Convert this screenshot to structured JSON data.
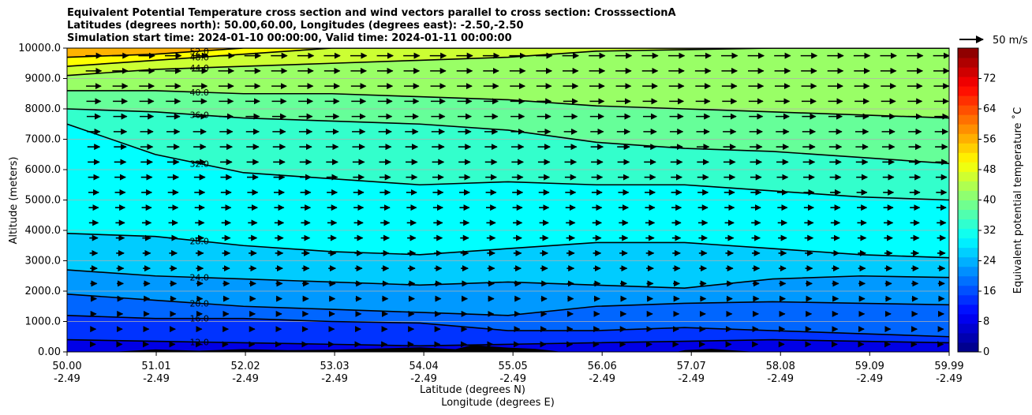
{
  "title_lines": [
    "Equivalent Potential Temperature cross section and wind vectors parallel to cross section: CrosssectionA",
    "Latitudes (degrees north): 50.00,60.00, Longitudes (degrees east): -2.50,-2.50",
    "Simulation start time: 2024-01-10 00:00:00, Valid time: 2024-01-11 00:00:00"
  ],
  "chart_data": {
    "type": "contour",
    "ylabel": "Altitude (meters)",
    "xlabel": "Latitude (degrees N)",
    "xlabel2": "Longitude (degrees E)",
    "ylim": [
      0,
      10000
    ],
    "xlim": [
      50.0,
      59.99
    ],
    "y_ticks": [
      "0.00",
      "1000.0",
      "2000.0",
      "3000.0",
      "4000.0",
      "5000.0",
      "6000.0",
      "7000.0",
      "8000.0",
      "9000.0",
      "10000.0"
    ],
    "y_tick_values": [
      0,
      1000,
      2000,
      3000,
      4000,
      5000,
      6000,
      7000,
      8000,
      9000,
      10000
    ],
    "x_ticks": [
      {
        "lat": "50.00",
        "lon": "-2.49",
        "value": 50.0
      },
      {
        "lat": "51.01",
        "lon": "-2.49",
        "value": 51.01
      },
      {
        "lat": "52.02",
        "lon": "-2.49",
        "value": 52.02
      },
      {
        "lat": "53.03",
        "lon": "-2.49",
        "value": 53.03
      },
      {
        "lat": "54.04",
        "lon": "-2.49",
        "value": 54.04
      },
      {
        "lat": "55.05",
        "lon": "-2.49",
        "value": 55.05
      },
      {
        "lat": "56.06",
        "lon": "-2.49",
        "value": 56.06
      },
      {
        "lat": "57.07",
        "lon": "-2.49",
        "value": 57.07
      },
      {
        "lat": "58.08",
        "lon": "-2.49",
        "value": 58.08
      },
      {
        "lat": "59.09",
        "lon": "-2.49",
        "value": 59.09
      },
      {
        "lat": "59.99",
        "lon": "-2.49",
        "value": 59.99
      }
    ],
    "grid": true,
    "colorbar": {
      "label": "Equivalent potential temperature ˚C",
      "range": [
        0,
        80
      ],
      "ticks": [
        0,
        8,
        16,
        24,
        32,
        40,
        48,
        56,
        64,
        72
      ]
    },
    "quiver_key": "50 m/s",
    "contour_levels": [
      {
        "label": "12.0",
        "alt": [
          400,
          350,
          300,
          250,
          200,
          250,
          300,
          350,
          400,
          350,
          300
        ]
      },
      {
        "label": "16.0",
        "alt": [
          1200,
          1100,
          1100,
          1000,
          950,
          700,
          700,
          800,
          700,
          600,
          500
        ]
      },
      {
        "label": "20.0",
        "alt": [
          1900,
          1700,
          1500,
          1400,
          1300,
          1200,
          1500,
          1600,
          1650,
          1600,
          1550
        ]
      },
      {
        "label": "24.0",
        "alt": [
          2700,
          2500,
          2400,
          2300,
          2200,
          2300,
          2200,
          2100,
          2400,
          2500,
          2450
        ]
      },
      {
        "label": "28.0",
        "alt": [
          3900,
          3800,
          3500,
          3300,
          3200,
          3400,
          3600,
          3600,
          3400,
          3200,
          3100
        ]
      },
      {
        "label": "32.0",
        "alt": [
          7500,
          6500,
          5900,
          5700,
          5500,
          5600,
          5500,
          5500,
          5300,
          5100,
          5000
        ]
      },
      {
        "label": "36.0",
        "alt": [
          8000,
          7900,
          7700,
          7600,
          7500,
          7300,
          6900,
          6700,
          6600,
          6400,
          6200
        ]
      },
      {
        "label": "40.0",
        "alt": [
          8600,
          8600,
          8500,
          8500,
          8400,
          8300,
          8100,
          8000,
          7900,
          7800,
          7700
        ]
      },
      {
        "label": "44.0",
        "alt": [
          9100,
          9300,
          9400,
          9500,
          9600,
          9700,
          9900,
          9950,
          10000,
          10000,
          10000
        ]
      },
      {
        "label": "48.0",
        "alt": [
          9400,
          9600,
          9800,
          10000,
          10000,
          10000,
          10000,
          10000,
          10000,
          10000,
          10000
        ]
      },
      {
        "label": "52.0",
        "alt": [
          9700,
          9800,
          10000,
          10000,
          10000,
          10000,
          10000,
          10000,
          10000,
          10000,
          10000
        ]
      }
    ]
  }
}
